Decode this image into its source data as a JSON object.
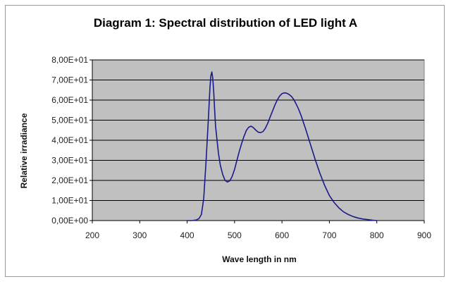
{
  "chart_data": {
    "type": "line",
    "title": "Diagram 1: Spectral distribution of LED light A",
    "xlabel": "Wave length in nm",
    "ylabel": "Relative irradiance",
    "xlim": [
      200,
      900
    ],
    "ylim": [
      0,
      80
    ],
    "x_ticks": [
      "200",
      "300",
      "400",
      "500",
      "600",
      "700",
      "800",
      "900"
    ],
    "y_ticks": [
      "0,00E+00",
      "1,00E+01",
      "2,00E+01",
      "3,00E+01",
      "4,00E+01",
      "5,00E+01",
      "6,00E+01",
      "7,00E+01",
      "8,00E+01"
    ],
    "grid": "horizontal",
    "legend": "none",
    "colors": {
      "plot_background": "#c0c0c0",
      "line": "#1a1a8c",
      "gridline": "#000000"
    },
    "series": [
      {
        "x": [
          400,
          410,
          420,
          425,
          430,
          435,
          440,
          445,
          448,
          450,
          452,
          454,
          456,
          458,
          460,
          463,
          466,
          470,
          475,
          480,
          485,
          490,
          495,
          500,
          505,
          510,
          515,
          520,
          525,
          530,
          535,
          540,
          545,
          550,
          555,
          560,
          565,
          570,
          575,
          580,
          585,
          590,
          595,
          600,
          605,
          610,
          615,
          620,
          625,
          630,
          635,
          640,
          650,
          660,
          670,
          680,
          690,
          700,
          710,
          720,
          730,
          740,
          750,
          760,
          770,
          780,
          790,
          800
        ],
        "y": [
          0,
          0,
          0.3,
          1,
          3,
          11,
          30,
          52,
          66,
          72,
          74,
          71,
          64,
          55,
          47,
          40,
          33.5,
          27.5,
          23,
          20,
          19.2,
          19.8,
          22,
          25.5,
          30,
          34.5,
          38.5,
          42,
          45,
          46.5,
          47,
          46.2,
          45,
          44,
          43.8,
          44.3,
          46,
          48.5,
          51.5,
          54.5,
          57.5,
          60,
          62,
          63.2,
          63.6,
          63.4,
          62.8,
          61.8,
          60.2,
          58,
          55.5,
          52.5,
          45.5,
          38,
          30.5,
          23.5,
          17.5,
          12.5,
          9,
          6.3,
          4.3,
          3,
          2,
          1.3,
          0.8,
          0.5,
          0.2,
          0
        ]
      }
    ]
  }
}
